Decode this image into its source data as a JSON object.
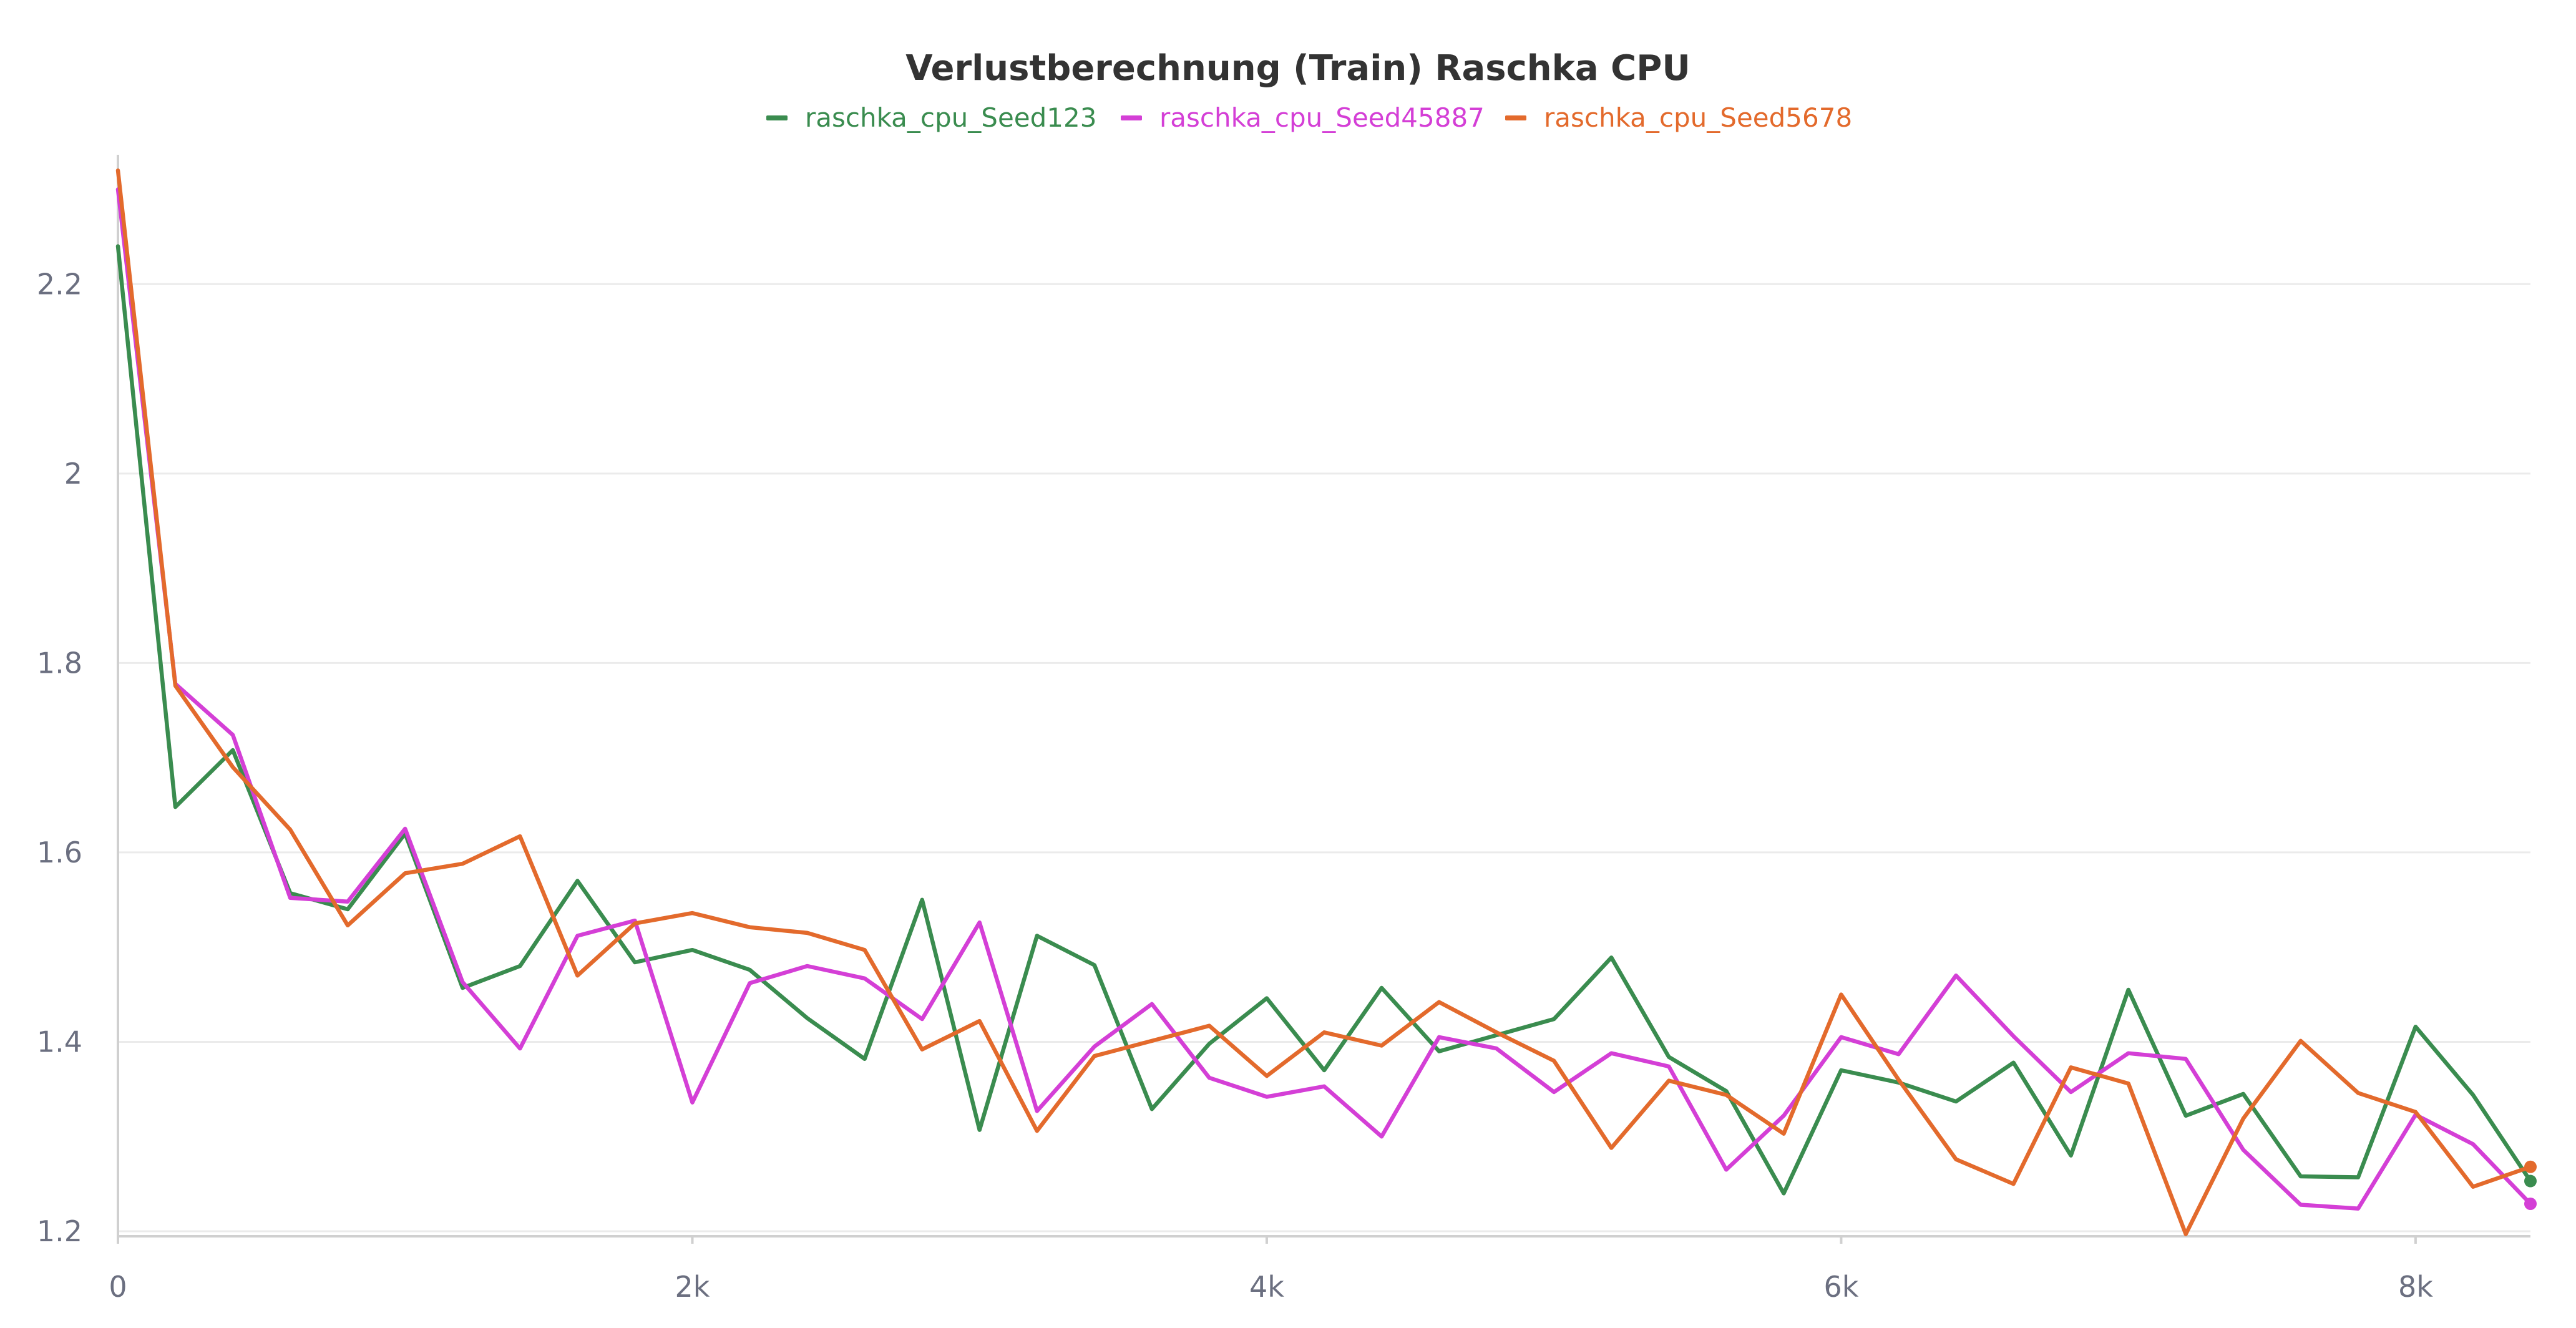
{
  "chart_data": {
    "type": "line",
    "title": "Verlustberechnung (Train) Raschka CPU",
    "xlabel": "",
    "ylabel": "",
    "xlim": [
      0,
      8400
    ],
    "ylim": [
      1.2,
      2.33
    ],
    "x_ticks": [
      {
        "value": 0,
        "label": "0"
      },
      {
        "value": 2000,
        "label": "2k"
      },
      {
        "value": 4000,
        "label": "4k"
      },
      {
        "value": 6000,
        "label": "6k"
      },
      {
        "value": 8000,
        "label": "8k"
      }
    ],
    "y_ticks": [
      {
        "value": 1.2,
        "label": "1.2"
      },
      {
        "value": 1.4,
        "label": "1.4"
      },
      {
        "value": 1.6,
        "label": "1.6"
      },
      {
        "value": 1.8,
        "label": "1.8"
      },
      {
        "value": 2.0,
        "label": "2"
      },
      {
        "value": 2.2,
        "label": "2.2"
      }
    ],
    "grid": true,
    "legend_position": "top-center",
    "x": [
      0,
      200,
      400,
      600,
      800,
      1000,
      1200,
      1400,
      1600,
      1800,
      2000,
      2200,
      2400,
      2600,
      2800,
      3000,
      3200,
      3400,
      3600,
      3800,
      4000,
      4200,
      4400,
      4600,
      4800,
      5000,
      5200,
      5400,
      5600,
      5800,
      6000,
      6200,
      6400,
      6600,
      6800,
      7000,
      7200,
      7400,
      7600,
      7800,
      8000,
      8200,
      8400
    ],
    "series": [
      {
        "name": "raschka_cpu_Seed123",
        "color": "#3a8c4f",
        "values": [
          2.24,
          1.648,
          1.708,
          1.557,
          1.54,
          1.62,
          1.457,
          1.48,
          1.57,
          1.484,
          1.497,
          1.476,
          1.425,
          1.382,
          1.55,
          1.307,
          1.512,
          1.481,
          1.329,
          1.398,
          1.446,
          1.37,
          1.457,
          1.39,
          1.407,
          1.424,
          1.489,
          1.384,
          1.348,
          1.24,
          1.37,
          1.357,
          1.337,
          1.378,
          1.28,
          1.455,
          1.322,
          1.345,
          1.258,
          1.257,
          1.416,
          1.344,
          1.253
        ]
      },
      {
        "name": "raschka_cpu_Seed45887",
        "color": "#d43fd6",
        "values": [
          2.3,
          1.778,
          1.724,
          1.552,
          1.548,
          1.625,
          1.463,
          1.393,
          1.512,
          1.528,
          1.336,
          1.462,
          1.48,
          1.467,
          1.424,
          1.526,
          1.327,
          1.395,
          1.44,
          1.362,
          1.342,
          1.353,
          1.3,
          1.405,
          1.393,
          1.347,
          1.388,
          1.374,
          1.265,
          1.322,
          1.405,
          1.387,
          1.47,
          1.406,
          1.347,
          1.388,
          1.382,
          1.286,
          1.228,
          1.224,
          1.323,
          1.292,
          1.229
        ]
      },
      {
        "name": "raschka_cpu_Seed5678",
        "color": "#e36a2c",
        "values": [
          2.32,
          1.776,
          1.69,
          1.624,
          1.523,
          1.578,
          1.588,
          1.617,
          1.47,
          1.525,
          1.536,
          1.521,
          1.515,
          1.497,
          1.392,
          1.422,
          1.306,
          1.385,
          1.401,
          1.417,
          1.364,
          1.41,
          1.396,
          1.442,
          1.41,
          1.38,
          1.288,
          1.359,
          1.344,
          1.303,
          1.45,
          1.36,
          1.276,
          1.25,
          1.373,
          1.356,
          1.197,
          1.319,
          1.401,
          1.346,
          1.326,
          1.247,
          1.268
        ]
      }
    ]
  }
}
